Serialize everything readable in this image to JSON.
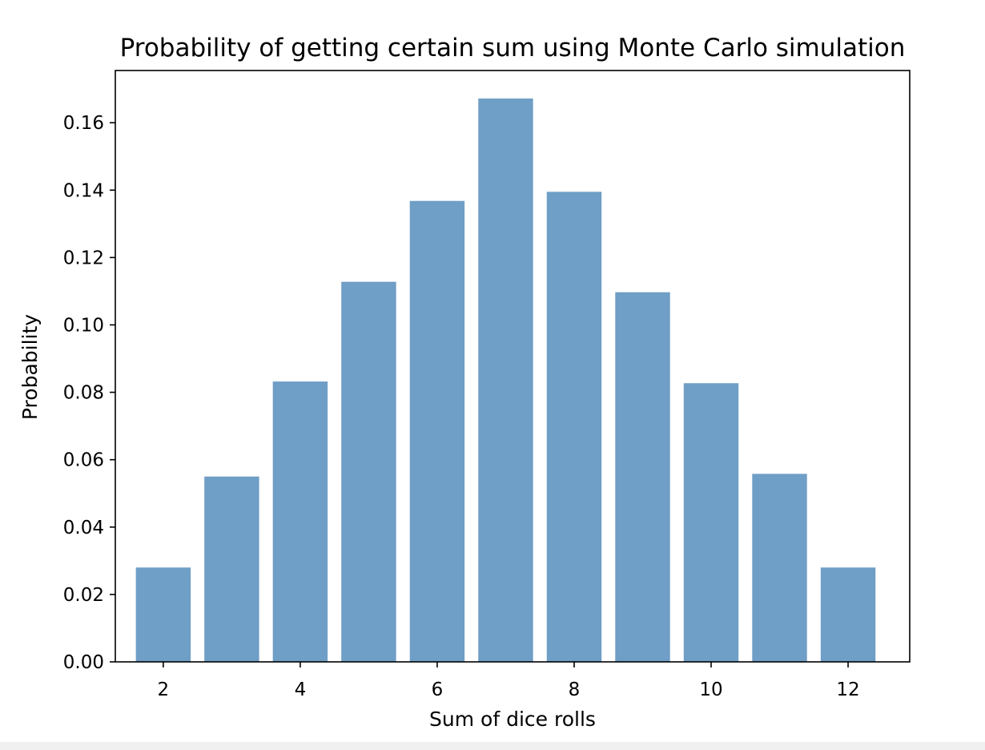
{
  "chart_data": {
    "type": "bar",
    "title": "Probability of getting certain sum using Monte Carlo simulation",
    "xlabel": "Sum of dice rolls",
    "ylabel": "Probability",
    "categories": [
      2,
      3,
      4,
      5,
      6,
      7,
      8,
      9,
      10,
      11,
      12
    ],
    "values": [
      0.028,
      0.055,
      0.0832,
      0.1128,
      0.1368,
      0.1672,
      0.1395,
      0.1097,
      0.0827,
      0.0558,
      0.028
    ],
    "xlim": [
      1.3,
      12.9
    ],
    "ylim": [
      0,
      0.1755
    ],
    "xticks": [
      "2",
      "4",
      "6",
      "8",
      "10",
      "12"
    ],
    "yticks": [
      "0.00",
      "0.02",
      "0.04",
      "0.06",
      "0.08",
      "0.10",
      "0.12",
      "0.14",
      "0.16"
    ],
    "bar_color": "#6f9ec6",
    "grid": false,
    "legend": "none"
  }
}
